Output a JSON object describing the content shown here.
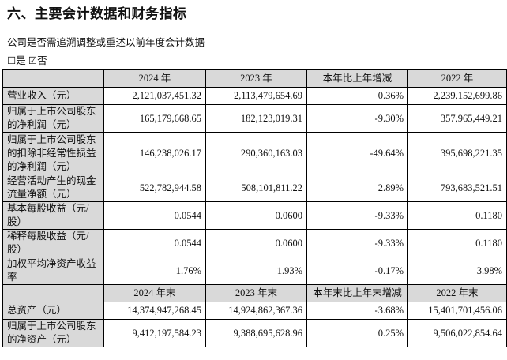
{
  "title": "六、主要会计数据和财务指标",
  "question": "公司是否需追溯调整或重述以前年度会计数据",
  "options": [
    {
      "label": "是",
      "checked": false
    },
    {
      "label": "否",
      "checked": true
    }
  ],
  "table1": {
    "headers": [
      "",
      "2024 年",
      "2023 年",
      "本年比上年增减",
      "2022 年"
    ],
    "rows": [
      {
        "label": "营业收入（元）",
        "values": [
          "2,121,037,451.32",
          "2,113,479,654.69",
          "0.36%",
          "2,239,152,699.86"
        ]
      },
      {
        "label": "归属于上市公司股东的净利润（元）",
        "values": [
          "165,179,668.65",
          "182,123,019.31",
          "-9.30%",
          "357,965,449.21"
        ]
      },
      {
        "label": "归属于上市公司股东的扣除非经常性损益的净利润（元）",
        "values": [
          "146,238,026.17",
          "290,360,163.03",
          "-49.64%",
          "395,698,221.35"
        ]
      },
      {
        "label": "经营活动产生的现金流量净额（元）",
        "values": [
          "522,782,944.58",
          "508,101,811.22",
          "2.89%",
          "793,683,521.51"
        ]
      },
      {
        "label": "基本每股收益（元/股）",
        "values": [
          "0.0544",
          "0.0600",
          "-9.33%",
          "0.1180"
        ]
      },
      {
        "label": "稀释每股收益（元/股）",
        "values": [
          "0.0544",
          "0.0600",
          "-9.33%",
          "0.1180"
        ]
      },
      {
        "label": "加权平均净资产收益率",
        "values": [
          "1.76%",
          "1.93%",
          "-0.17%",
          "3.98%"
        ]
      }
    ]
  },
  "table2": {
    "headers": [
      "",
      "2024 年末",
      "2023 年末",
      "本年末比上年末增减",
      "2022 年末"
    ],
    "rows": [
      {
        "label": "总资产（元）",
        "values": [
          "14,374,947,268.45",
          "14,924,862,367.36",
          "-3.68%",
          "15,401,701,456.06"
        ]
      },
      {
        "label": "归属于上市公司股东的净资产（元）",
        "values": [
          "9,412,197,584.23",
          "9,388,695,628.96",
          "0.25%",
          "9,506,022,854.64"
        ]
      }
    ]
  }
}
